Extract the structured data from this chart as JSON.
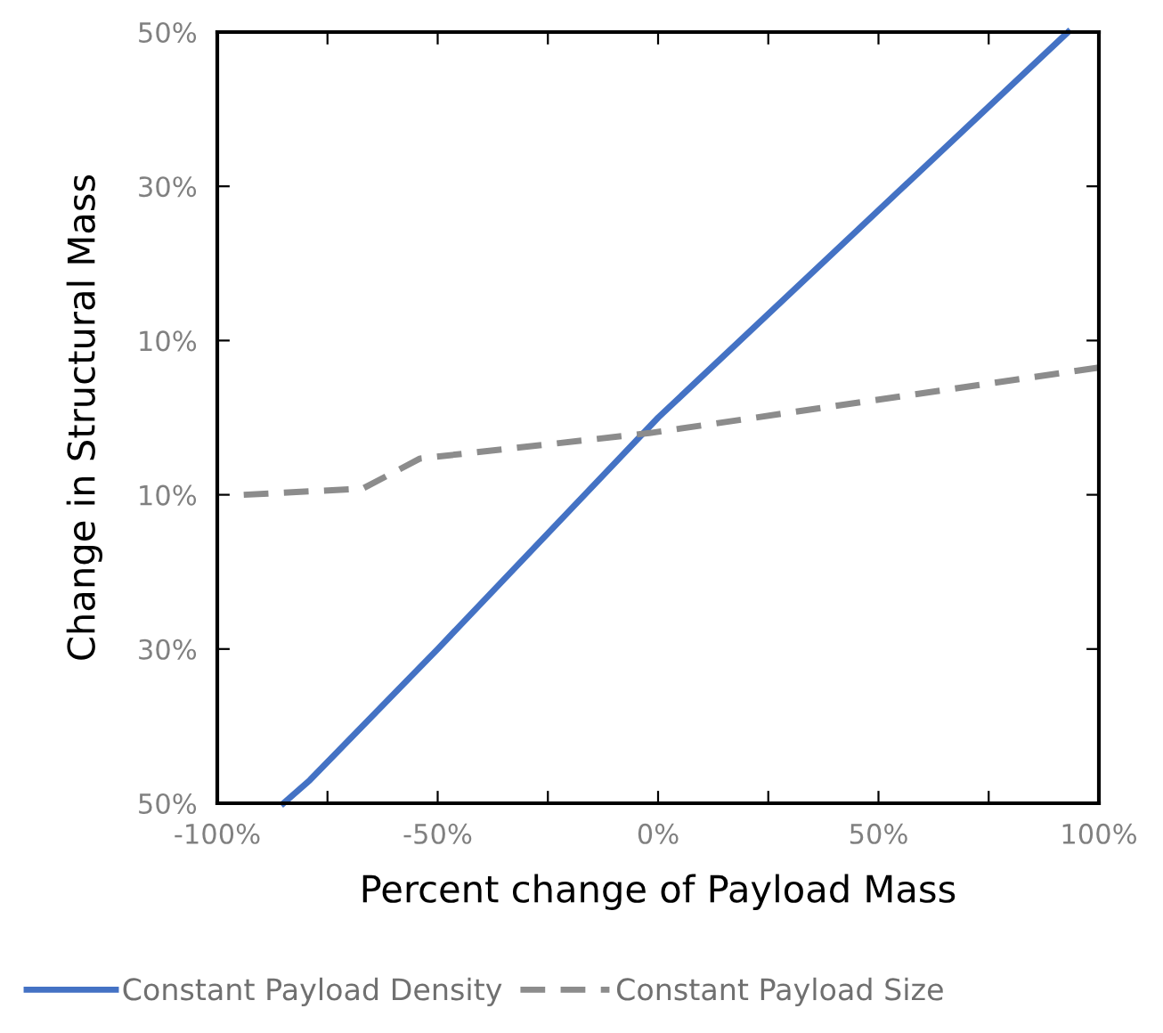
{
  "chart_data": {
    "type": "line",
    "xlabel": "Percent change of Payload Mass",
    "ylabel": "Change in Structural Mass",
    "series": [
      {
        "name": "Constant Payload Density",
        "color": "#4472c4",
        "line_style": "solid",
        "x": [
          -85,
          -79,
          -50,
          0,
          93
        ],
        "values": [
          -50,
          -47,
          -30,
          0,
          50
        ]
      },
      {
        "name": "Constant Payload Size",
        "color": "#8c8c8c",
        "line_style": "dashed",
        "x": [
          -94,
          -67,
          -54,
          -2,
          100
        ],
        "values": [
          -10,
          -9.2,
          -5.3,
          -2,
          6.5
        ]
      }
    ],
    "xlim": [
      -100,
      100
    ],
    "xticks": [
      {
        "value": -100,
        "label": "-100%"
      },
      {
        "value": -75,
        "label": null
      },
      {
        "value": -50,
        "label": "-50%"
      },
      {
        "value": -25,
        "label": null
      },
      {
        "value": 0,
        "label": "0%"
      },
      {
        "value": 25,
        "label": null
      },
      {
        "value": 50,
        "label": "50%"
      },
      {
        "value": 75,
        "label": null
      },
      {
        "value": 100,
        "label": "100%"
      }
    ],
    "ylim": [
      -50,
      50
    ],
    "yticks": [
      {
        "value": -50,
        "label": "50%"
      },
      {
        "value": -30,
        "label": "30%"
      },
      {
        "value": -10,
        "label": "10%"
      },
      {
        "value": 10,
        "label": "10%"
      },
      {
        "value": 30,
        "label": "30%"
      },
      {
        "value": 50,
        "label": "50%"
      }
    ],
    "grid": false,
    "legend": "bottom",
    "marker": "none"
  }
}
